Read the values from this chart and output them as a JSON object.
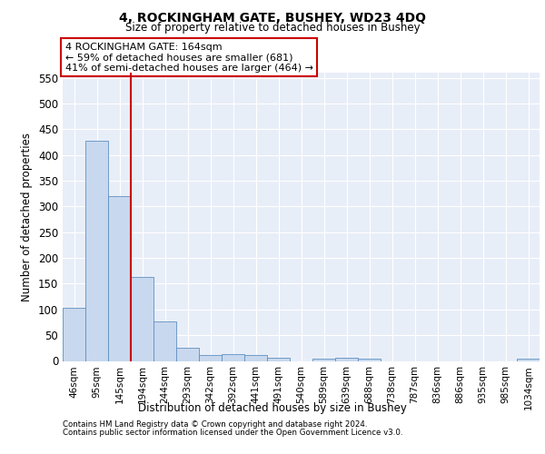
{
  "title_line1": "4, ROCKINGHAM GATE, BUSHEY, WD23 4DQ",
  "title_line2": "Size of property relative to detached houses in Bushey",
  "xlabel": "Distribution of detached houses by size in Bushey",
  "ylabel": "Number of detached properties",
  "footer_line1": "Contains HM Land Registry data © Crown copyright and database right 2024.",
  "footer_line2": "Contains public sector information licensed under the Open Government Licence v3.0.",
  "annotation_line1": "4 ROCKINGHAM GATE: 164sqm",
  "annotation_line2": "← 59% of detached houses are smaller (681)",
  "annotation_line3": "41% of semi-detached houses are larger (464) →",
  "bar_labels": [
    "46sqm",
    "95sqm",
    "145sqm",
    "194sqm",
    "244sqm",
    "293sqm",
    "342sqm",
    "392sqm",
    "441sqm",
    "491sqm",
    "540sqm",
    "589sqm",
    "639sqm",
    "688sqm",
    "738sqm",
    "787sqm",
    "836sqm",
    "886sqm",
    "935sqm",
    "985sqm",
    "1034sqm"
  ],
  "bar_values": [
    103,
    428,
    320,
    163,
    76,
    26,
    11,
    14,
    11,
    6,
    0,
    5,
    6,
    5,
    0,
    0,
    0,
    0,
    0,
    0,
    5
  ],
  "bar_color": "#c8d8ee",
  "bar_edge_color": "#6090c0",
  "red_line_x": 2.5,
  "red_line_color": "#cc0000",
  "ylim": [
    0,
    560
  ],
  "yticks": [
    0,
    50,
    100,
    150,
    200,
    250,
    300,
    350,
    400,
    450,
    500,
    550
  ],
  "annotation_box_color": "#cc0000",
  "background_color": "#ffffff",
  "grid_color": "#c8d4e8"
}
